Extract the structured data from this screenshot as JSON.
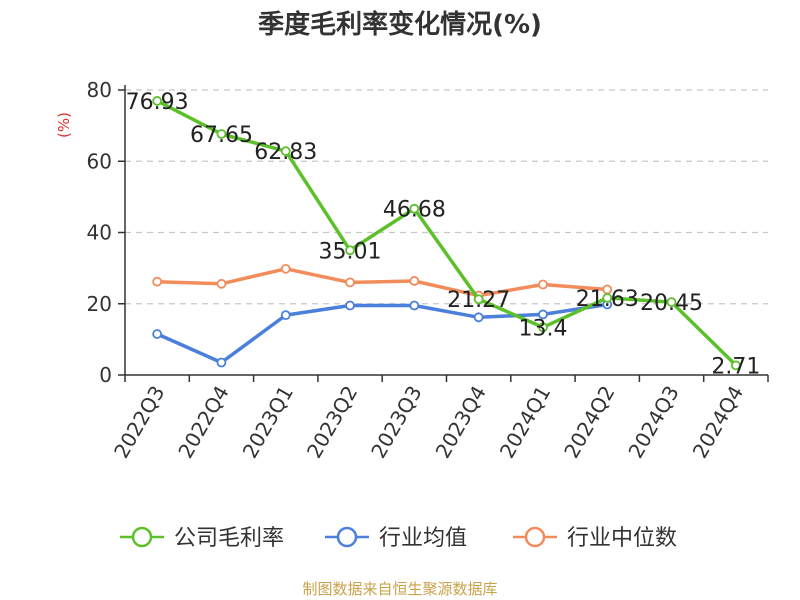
{
  "chart_data": {
    "type": "line",
    "title": "季度毛利率变化情况(%)",
    "ylabel": "(%)",
    "ylim": [
      0,
      80
    ],
    "yticks": [
      0,
      20,
      40,
      60,
      80
    ],
    "grid": true,
    "legend_position": "bottom",
    "categories": [
      "2022Q3",
      "2022Q4",
      "2023Q1",
      "2023Q2",
      "2023Q3",
      "2023Q4",
      "2024Q1",
      "2024Q2",
      "2024Q3",
      "2024Q4"
    ],
    "series": [
      {
        "name": "公司毛利率",
        "color": "#5cc02a",
        "values": [
          76.93,
          67.65,
          62.83,
          35.01,
          46.68,
          21.27,
          13.4,
          21.63,
          20.45,
          2.71
        ],
        "labels": [
          "76.93",
          "67.65",
          "62.83",
          "35.01",
          "46.68",
          "21.27",
          "13.4",
          "21.63",
          "20.45",
          "2.71"
        ]
      },
      {
        "name": "行业均值",
        "color": "#4a7fdb",
        "values": [
          11.5,
          3.5,
          16.8,
          19.5,
          19.5,
          16.2,
          17.0,
          19.8,
          null,
          null
        ]
      },
      {
        "name": "行业中位数",
        "color": "#f28c5a",
        "values": [
          26.2,
          25.6,
          29.8,
          26.0,
          26.4,
          22.3,
          25.4,
          24.0,
          null,
          null
        ]
      }
    ],
    "source": "制图数据来自恒生聚源数据库"
  }
}
